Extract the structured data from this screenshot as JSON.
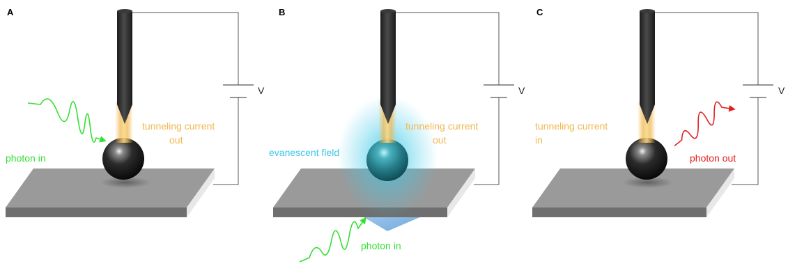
{
  "colors": {
    "green": "#33e033",
    "orange": "#f0b850",
    "cyan": "#3cc8e8",
    "red": "#e02020",
    "tip": "#2e2e2e",
    "wire": "#555555",
    "plate_top": "#9a9a9a",
    "plate_front": "#6f6f6f"
  },
  "panels": [
    {
      "letter": "A",
      "battery": "V",
      "tunneling": [
        "tunneling current",
        "out"
      ],
      "photon": "photon in"
    },
    {
      "letter": "B",
      "battery": "V",
      "tunneling": [
        "tunneling current",
        "out"
      ],
      "field": "evanescent field",
      "photon": "photon in"
    },
    {
      "letter": "C",
      "battery": "V",
      "tunneling": [
        "tunneling current",
        "in"
      ],
      "photon": "photon out"
    }
  ]
}
